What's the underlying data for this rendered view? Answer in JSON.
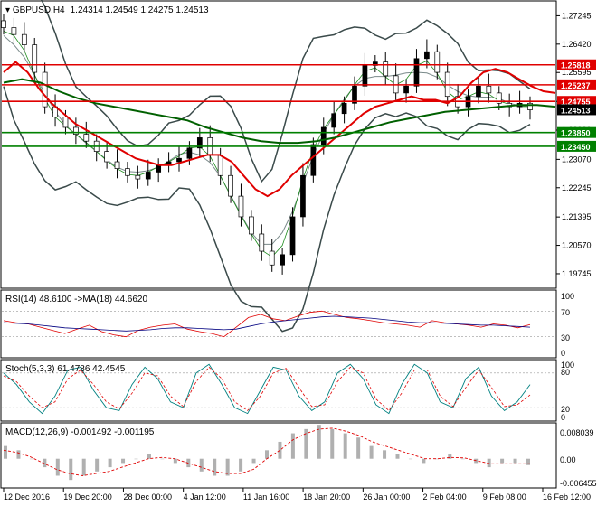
{
  "main": {
    "symbol_label": "GBPUSD,H4",
    "ohlc": "1.24314 1.24549 1.24275 1.24513",
    "y_ticks": [
      "1.27245",
      "1.26420",
      "1.25595",
      "1.24755",
      "1.23920",
      "1.23070",
      "1.22245",
      "1.21395",
      "1.20570",
      "1.19745"
    ],
    "levels": [
      {
        "label": "1.25818",
        "value": 1.25818,
        "color": "#e00000",
        "text_color": "#ffffff"
      },
      {
        "label": "1.25237",
        "value": 1.25237,
        "color": "#e00000",
        "text_color": "#ffffff"
      },
      {
        "label": "1.24755",
        "value": 1.24755,
        "color": "#e00000",
        "text_color": "#ffffff"
      },
      {
        "label": "1.24513",
        "value": 1.24513,
        "color": "#000000",
        "text_color": "#ffffff"
      },
      {
        "label": "1.23850",
        "value": 1.2385,
        "color": "#008000",
        "text_color": "#ffffff"
      },
      {
        "label": "1.23450",
        "value": 1.2345,
        "color": "#008000",
        "text_color": "#ffffff"
      }
    ]
  },
  "rsi": {
    "label": "RSI(14) 48.6100  ->MA(18) 44.6620",
    "ticks": [
      "70",
      "30"
    ],
    "scale_labels": [
      "100",
      "0"
    ]
  },
  "stoch": {
    "label": "Stoch(5,3,3) 61.4786 42.4545",
    "ticks": [
      "80",
      "20"
    ],
    "scale_labels": [
      "100",
      "0"
    ]
  },
  "macd": {
    "label": "MACD(12,26,9) -0.001492 -0.001195",
    "ticks": [
      "0.008039",
      "0.00",
      "-0.006455"
    ]
  },
  "x_ticks": [
    "12 Dec 2016",
    "19 Dec 20:00",
    "28 Dec 00:00",
    "4 Jan 12:00",
    "11 Jan 16:00",
    "18 Jan 20:00",
    "26 Jan 00:00",
    "2 Feb 04:00",
    "9 Feb 08:00",
    "16 Feb 12:00"
  ],
  "chart_data": {
    "type": "line",
    "title": "GBPUSD,H4",
    "ylim": [
      1.1935,
      1.2765
    ],
    "price_close_approx": [
      1.269,
      1.267,
      1.264,
      1.256,
      1.246,
      1.243,
      1.24,
      1.238,
      1.236,
      1.233,
      1.23,
      1.228,
      1.226,
      1.225,
      1.227,
      1.229,
      1.23,
      1.231,
      1.234,
      1.237,
      1.232,
      1.226,
      1.22,
      1.214,
      1.209,
      1.204,
      1.2,
      1.203,
      1.214,
      1.226,
      1.235,
      1.24,
      1.244,
      1.247,
      1.252,
      1.258,
      1.259,
      1.255,
      1.25,
      1.252,
      1.26,
      1.262,
      1.256,
      1.249,
      1.246,
      1.249,
      1.252,
      1.25,
      1.247,
      1.246,
      1.247,
      1.2451
    ],
    "series": [
      {
        "name": "GBPUSD,H4 close",
        "values_key": "price_close_approx"
      }
    ],
    "horizontal_levels": [
      1.25818,
      1.25237,
      1.24755,
      1.2385,
      1.2345
    ],
    "ma_red": [
      1.256,
      1.259,
      1.256,
      1.251,
      1.247,
      1.244,
      1.241,
      1.239,
      1.237,
      1.235,
      1.233,
      1.231,
      1.23,
      1.229,
      1.229,
      1.23,
      1.231,
      1.232,
      1.232,
      1.23,
      1.226,
      1.222,
      1.22,
      1.222,
      1.226,
      1.229,
      1.232,
      1.235,
      1.238,
      1.241,
      1.244,
      1.246,
      1.247,
      1.248,
      1.249,
      1.248,
      1.248,
      1.247,
      1.249,
      1.253,
      1.256,
      1.257,
      1.256,
      1.254,
      1.252,
      1.2505,
      1.25
    ],
    "ma_green": [
      1.253,
      1.254,
      1.253,
      1.2505,
      1.2485,
      1.247,
      1.246,
      1.245,
      1.244,
      1.243,
      1.242,
      1.24,
      1.2385,
      1.237,
      1.236,
      1.2355,
      1.2355,
      1.236,
      1.237,
      1.2385,
      1.24,
      1.2415,
      1.2425,
      1.2435,
      1.2445,
      1.245,
      1.2455,
      1.246,
      1.2465,
      1.2465,
      1.246
    ],
    "rsi_values": [
      55,
      52,
      50,
      45,
      40,
      35,
      42,
      48,
      38,
      33,
      30,
      40,
      45,
      48,
      50,
      42,
      38,
      35,
      30,
      45,
      60,
      65,
      58,
      55,
      62,
      68,
      70,
      65,
      60,
      58,
      55,
      52,
      50,
      48,
      45,
      55,
      52,
      50,
      48,
      45,
      50,
      48,
      44,
      49
    ],
    "rsi_ma": [
      52,
      51,
      50,
      48,
      46,
      44,
      43,
      42,
      41,
      40,
      39,
      40,
      41,
      43,
      44,
      44,
      43,
      42,
      41,
      42,
      46,
      50,
      53,
      55,
      57,
      59,
      61,
      62,
      61,
      60,
      59,
      57,
      55,
      53,
      52,
      52,
      51,
      50,
      49,
      48,
      48,
      47,
      46,
      45
    ],
    "stoch_main": [
      80,
      60,
      30,
      10,
      40,
      85,
      90,
      50,
      20,
      15,
      60,
      90,
      70,
      30,
      20,
      80,
      95,
      60,
      20,
      10,
      50,
      90,
      85,
      40,
      15,
      30,
      80,
      95,
      70,
      25,
      10,
      60,
      95,
      80,
      30,
      20,
      70,
      90,
      40,
      15,
      30,
      60
    ],
    "stoch_signal": [
      75,
      65,
      40,
      20,
      30,
      70,
      85,
      60,
      30,
      18,
      45,
      80,
      75,
      40,
      22,
      65,
      90,
      70,
      30,
      15,
      40,
      80,
      88,
      55,
      22,
      25,
      65,
      90,
      80,
      35,
      15,
      45,
      85,
      85,
      40,
      22,
      55,
      85,
      55,
      22,
      25,
      42
    ],
    "macd_hist": [
      0.003,
      0.002,
      0.0,
      -0.002,
      -0.004,
      -0.005,
      -0.004,
      -0.003,
      -0.002,
      -0.001,
      0.0,
      0.001,
      0.0,
      -0.001,
      -0.002,
      -0.003,
      -0.004,
      -0.004,
      -0.003,
      -0.001,
      0.002,
      0.004,
      0.006,
      0.007,
      0.008,
      0.007,
      0.006,
      0.005,
      0.003,
      0.002,
      0.001,
      0.0,
      -0.001,
      0.0,
      0.001,
      0.0,
      -0.001,
      -0.002,
      -0.001,
      -0.001,
      -0.0015
    ],
    "macd_signal": [
      0.002,
      0.0015,
      0.0005,
      -0.001,
      -0.0025,
      -0.0035,
      -0.004,
      -0.0035,
      -0.003,
      -0.002,
      -0.001,
      0.0,
      0.0003,
      0.0,
      -0.001,
      -0.002,
      -0.003,
      -0.0035,
      -0.0035,
      -0.0025,
      0.0,
      0.002,
      0.0045,
      0.006,
      0.007,
      0.0072,
      0.0065,
      0.0055,
      0.004,
      0.003,
      0.002,
      0.001,
      0.0,
      0.0,
      0.0003,
      0.0002,
      -0.0005,
      -0.0012,
      -0.0012,
      -0.0012,
      -0.0012
    ]
  }
}
